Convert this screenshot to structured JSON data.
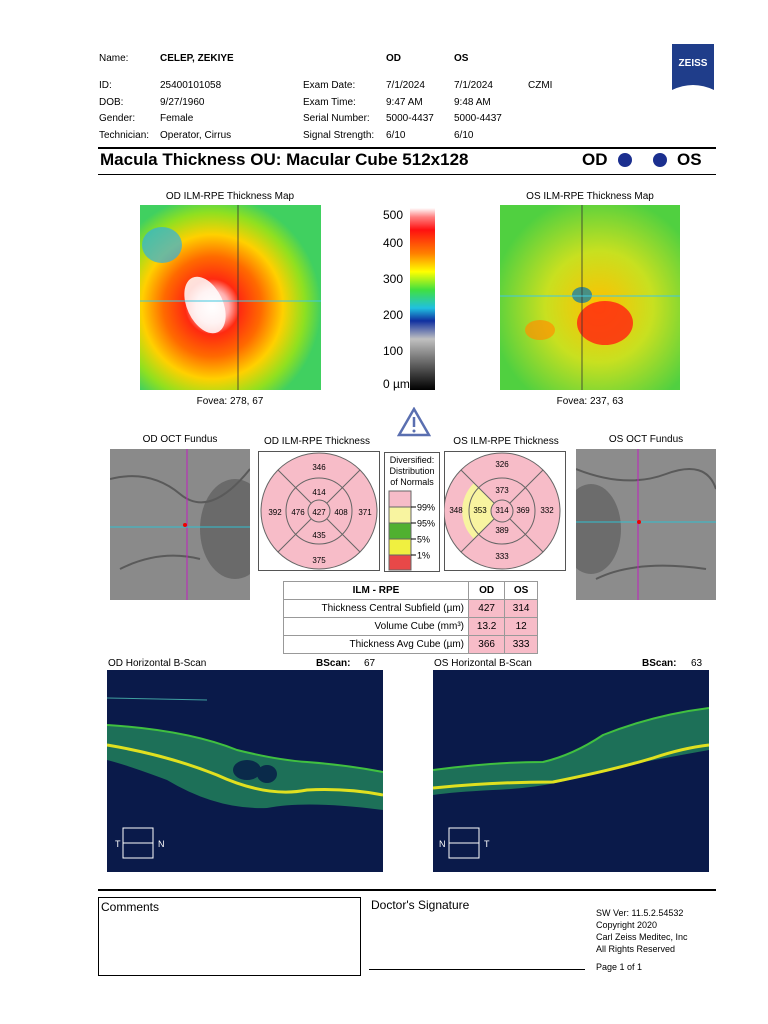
{
  "header": {
    "fields": [
      {
        "label": "Name:",
        "value": "CELEP, ZEKIYE"
      },
      {
        "label": "ID:",
        "value": "25400101058"
      },
      {
        "label": "DOB:",
        "value": "9/27/1960"
      },
      {
        "label": "Gender:",
        "value": "Female"
      },
      {
        "label": "Technician:",
        "value": "Operator, Cirrus"
      }
    ],
    "exam": {
      "columns": [
        "OD",
        "OS"
      ],
      "rows": [
        {
          "label": "Exam Date:",
          "od": "7/1/2024",
          "os": "7/1/2024"
        },
        {
          "label": "Exam Time:",
          "od": "9:47 AM",
          "os": "9:48 AM"
        },
        {
          "label": "Serial Number:",
          "od": "5000-4437",
          "os": "5000-4437"
        },
        {
          "label": "Signal Strength:",
          "od": "6/10",
          "os": "6/10"
        }
      ]
    },
    "site": "CZMI",
    "logo": "ZEISS"
  },
  "title": {
    "text": "Macula Thickness OU: Macular Cube 512x128",
    "od": "OD",
    "os": "OS"
  },
  "maps": {
    "od": {
      "title": "OD ILM-RPE Thickness Map",
      "fovea": "Fovea: 278, 67"
    },
    "os": {
      "title": "OS ILM-RPE Thickness Map",
      "fovea": "Fovea: 237, 63"
    },
    "scale": [
      "500",
      "400",
      "300",
      "200",
      "100",
      "0 µm"
    ]
  },
  "fundus": {
    "od": "OD OCT Fundus",
    "os": "OS OCT Fundus"
  },
  "grids": {
    "od": {
      "title": "OD ILM-RPE Thickness",
      "values": [
        "346",
        "414",
        "392",
        "476",
        "427",
        "408",
        "371",
        "435",
        "375"
      ]
    },
    "os": {
      "title": "OS ILM-RPE Thickness",
      "values": [
        "326",
        "373",
        "348",
        "353",
        "314",
        "369",
        "332",
        "389",
        "333"
      ]
    }
  },
  "legend": {
    "title": [
      "Diversified:",
      "Distribution",
      "of Normals"
    ],
    "levels": [
      "99%",
      "95%",
      "5%",
      "1%"
    ]
  },
  "table": {
    "header": [
      "ILM - RPE",
      "OD",
      "OS"
    ],
    "rows": [
      [
        "Thickness Central Subfield (µm)",
        "427",
        "314"
      ],
      [
        "Volume Cube (mm³)",
        "13.2",
        "12"
      ],
      [
        "Thickness Avg Cube (µm)",
        "366",
        "333"
      ]
    ]
  },
  "bscans": {
    "od": {
      "title": "OD Horizontal B-Scan",
      "label": "BScan:",
      "number": "67",
      "left": "T",
      "right": "N"
    },
    "os": {
      "title": "OS Horizontal B-Scan",
      "label": "BScan:",
      "number": "63",
      "left": "N",
      "right": "T"
    }
  },
  "footer": {
    "comments": "Comments",
    "signature": "Doctor's Signature",
    "info": [
      "SW Ver: 11.5.2.54532",
      "Copyright 2020",
      "Carl Zeiss Meditec, Inc",
      "All Rights Reserved"
    ],
    "page": "Page 1 of 1"
  }
}
